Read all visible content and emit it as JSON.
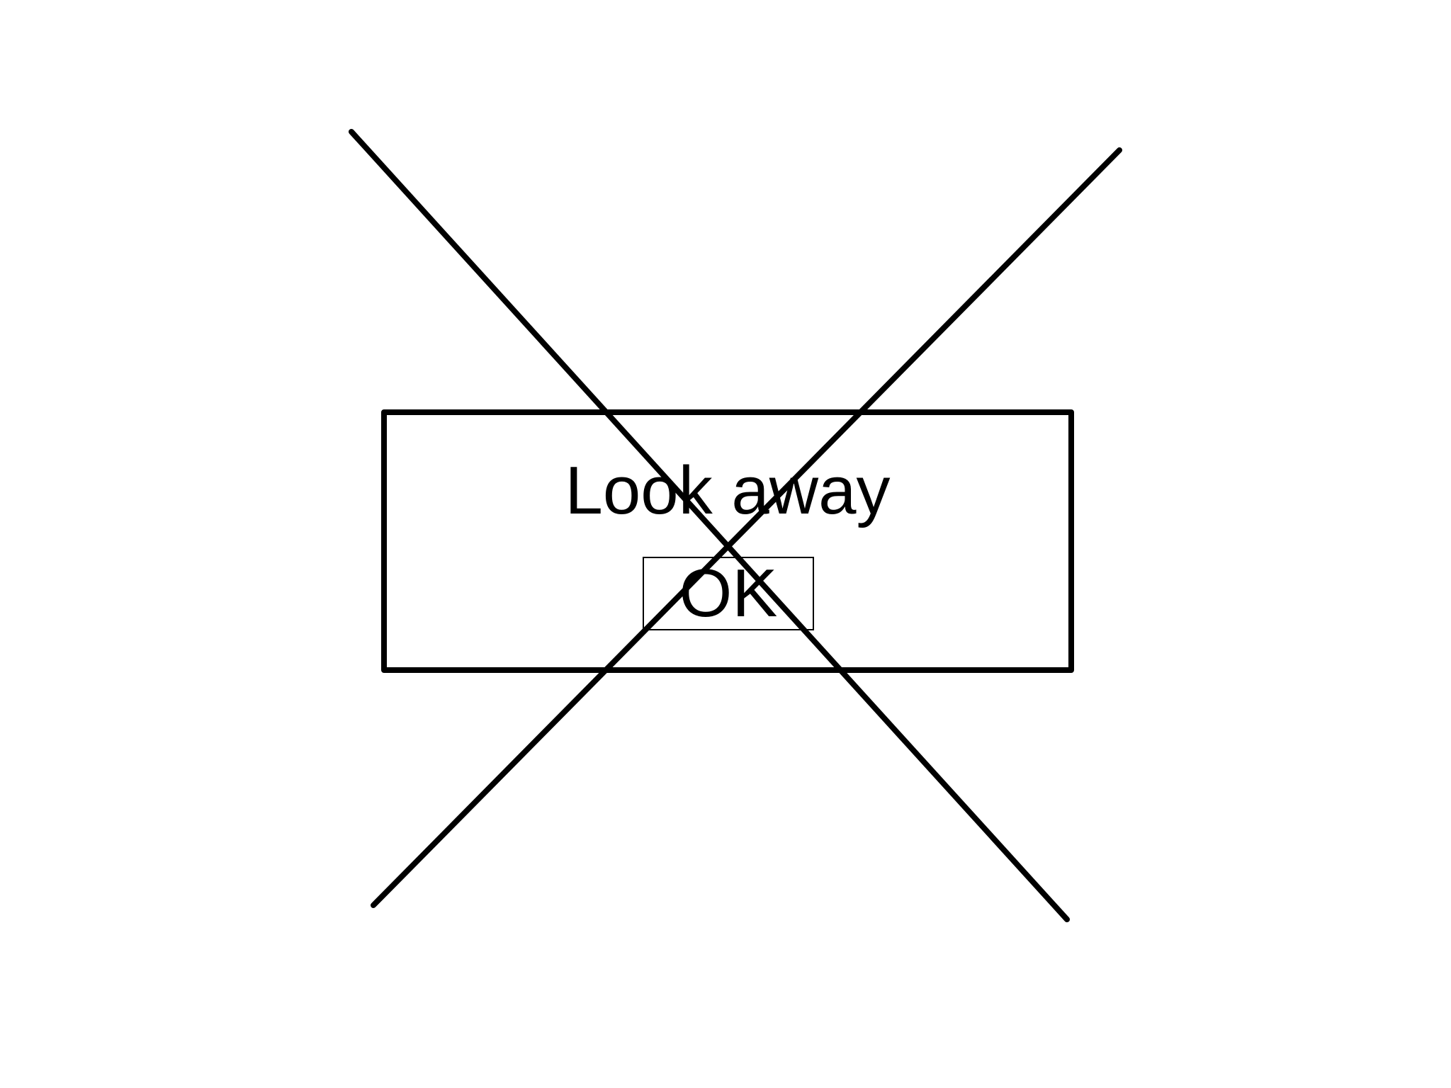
{
  "dialog": {
    "message": "Look away",
    "ok_label": "OK"
  },
  "overlay": {
    "icon": "cross-out-icon",
    "color": "#000000"
  }
}
